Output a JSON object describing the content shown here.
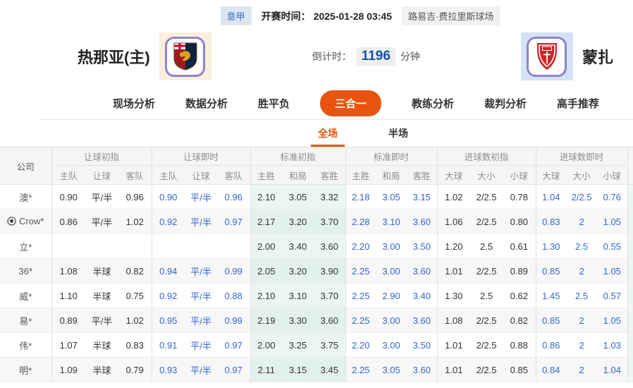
{
  "top_bar": {
    "league": "意甲",
    "kickoff_label": "开赛时间：",
    "kickoff_time": "2025-01-28 03:45",
    "venue": "路易吉·费拉里斯球场"
  },
  "match": {
    "home_name": "热那亚(主)",
    "away_name": "蒙扎",
    "home_logo": "genoa-crest-icon",
    "away_logo": "monza-crest-icon",
    "countdown_label": "倒计时：",
    "countdown_value": "1196",
    "countdown_unit": "分钟"
  },
  "tabs": [
    {
      "label": "现场分析",
      "active": false
    },
    {
      "label": "数据分析",
      "active": false
    },
    {
      "label": "胜平负",
      "active": false
    },
    {
      "label": "三合一",
      "active": true
    },
    {
      "label": "教练分析",
      "active": false
    },
    {
      "label": "裁判分析",
      "active": false
    },
    {
      "label": "高手推荐",
      "active": false
    }
  ],
  "subtabs": [
    {
      "label": "全场",
      "active": true
    },
    {
      "label": "半场",
      "active": false
    }
  ],
  "table": {
    "company_header": "公司",
    "groups": [
      {
        "title": "让球初指",
        "cols": [
          "主队",
          "让球",
          "客队"
        ],
        "live": false
      },
      {
        "title": "让球即时",
        "cols": [
          "主队",
          "让球",
          "客队"
        ],
        "live": true
      },
      {
        "title": "标准初指",
        "cols": [
          "主胜",
          "和局",
          "客胜"
        ],
        "live": false
      },
      {
        "title": "标准即时",
        "cols": [
          "主胜",
          "和局",
          "客胜"
        ],
        "live": true
      },
      {
        "title": "进球数初指",
        "cols": [
          "大球",
          "大小",
          "小球"
        ],
        "live": false
      },
      {
        "title": "进球数即时",
        "cols": [
          "大球",
          "大小",
          "小球"
        ],
        "live": true
      }
    ],
    "rows": [
      {
        "company": "澳*",
        "icon": null,
        "odds": [
          [
            "0.90",
            "平/半",
            "0.96"
          ],
          [
            "0.90",
            "平/半",
            "0.96"
          ],
          [
            "2.10",
            "3.05",
            "3.32"
          ],
          [
            "2.18",
            "3.05",
            "3.15"
          ],
          [
            "1.02",
            "2/2.5",
            "0.78"
          ],
          [
            "1.04",
            "2/2.5",
            "0.76"
          ]
        ]
      },
      {
        "company": "Crow*",
        "icon": "soccer-ball-icon",
        "odds": [
          [
            "0.86",
            "平/半",
            "1.02"
          ],
          [
            "0.92",
            "平/半",
            "0.97"
          ],
          [
            "2.17",
            "3.20",
            "3.70"
          ],
          [
            "2.28",
            "3.10",
            "3.60"
          ],
          [
            "1.06",
            "2/2.5",
            "0.80"
          ],
          [
            "0.83",
            "2",
            "1.05"
          ]
        ]
      },
      {
        "company": "立*",
        "icon": null,
        "odds": [
          [
            "",
            "",
            ""
          ],
          [
            "",
            "",
            ""
          ],
          [
            "2.00",
            "3.40",
            "3.60"
          ],
          [
            "2.20",
            "3.00",
            "3.50"
          ],
          [
            "1.20",
            "2.5",
            "0.61"
          ],
          [
            "1.30",
            "2.5",
            "0.55"
          ]
        ]
      },
      {
        "company": "36*",
        "icon": null,
        "odds": [
          [
            "1.08",
            "半球",
            "0.82"
          ],
          [
            "0.94",
            "平/半",
            "0.99"
          ],
          [
            "2.05",
            "3.20",
            "3.90"
          ],
          [
            "2.25",
            "3.00",
            "3.60"
          ],
          [
            "1.01",
            "2/2.5",
            "0.89"
          ],
          [
            "0.85",
            "2",
            "1.05"
          ]
        ]
      },
      {
        "company": "威*",
        "icon": null,
        "odds": [
          [
            "1.10",
            "半球",
            "0.75"
          ],
          [
            "0.92",
            "平/半",
            "0.88"
          ],
          [
            "2.10",
            "3.10",
            "3.70"
          ],
          [
            "2.25",
            "2.90",
            "3.40"
          ],
          [
            "1.30",
            "2.5",
            "0.62"
          ],
          [
            "1.45",
            "2.5",
            "0.57"
          ]
        ]
      },
      {
        "company": "易*",
        "icon": null,
        "odds": [
          [
            "0.89",
            "平/半",
            "1.02"
          ],
          [
            "0.95",
            "平/半",
            "0.99"
          ],
          [
            "2.19",
            "3.30",
            "3.60"
          ],
          [
            "2.25",
            "3.00",
            "3.60"
          ],
          [
            "1.08",
            "2/2.5",
            "0.82"
          ],
          [
            "0.85",
            "2",
            "1.05"
          ]
        ]
      },
      {
        "company": "伟*",
        "icon": null,
        "odds": [
          [
            "1.07",
            "半球",
            "0.83"
          ],
          [
            "0.91",
            "平/半",
            "0.97"
          ],
          [
            "2.00",
            "3.25",
            "3.75"
          ],
          [
            "2.20",
            "3.00",
            "3.50"
          ],
          [
            "1.01",
            "2/2.5",
            "0.88"
          ],
          [
            "0.86",
            "2",
            "1.03"
          ]
        ]
      },
      {
        "company": "明*",
        "icon": null,
        "odds": [
          [
            "1.09",
            "半球",
            "0.79"
          ],
          [
            "0.93",
            "平/半",
            "0.97"
          ],
          [
            "2.11",
            "3.15",
            "3.45"
          ],
          [
            "2.25",
            "3.05",
            "3.60"
          ],
          [
            "1.01",
            "2/2.5",
            "0.85"
          ],
          [
            "0.84",
            "2",
            "1.04"
          ]
        ]
      }
    ]
  },
  "colors": {
    "accent_orange": "#E8540E",
    "live_blue": "#3366CC",
    "countdown_blue": "#1553A8",
    "std_initial_bg": "#E9F6F4",
    "home_logo_panel": "#FBEEDD",
    "away_logo_panel": "#D3E3F5",
    "league_chip_bg": "#DCE6F1",
    "league_chip_text": "#3A6FC4"
  }
}
